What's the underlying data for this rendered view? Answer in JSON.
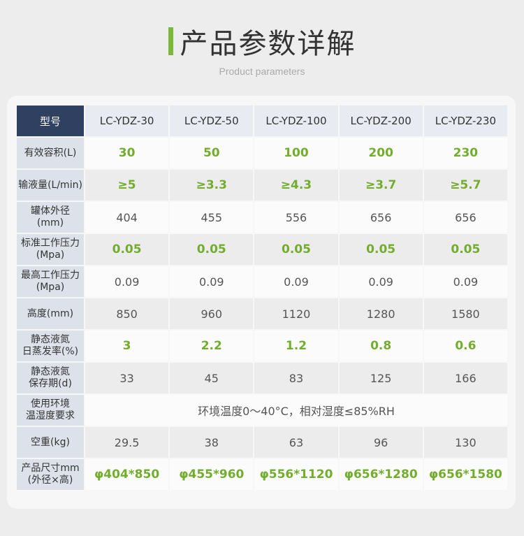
{
  "title": "产品参数详解",
  "subtitle": "Product parameters",
  "accent": "#7ab83a",
  "header_color": "#2f4060",
  "header": {
    "label": "型号",
    "models": [
      "LC-YDZ-30",
      "LC-YDZ-50",
      "LC-YDZ-100",
      "LC-YDZ-200",
      "LC-YDZ-230"
    ]
  },
  "rows": [
    {
      "label": "有效容积(L)",
      "values": [
        "30",
        "50",
        "100",
        "200",
        "230"
      ],
      "highlight": true
    },
    {
      "label": "输液量(L/min)",
      "values": [
        "≥5",
        "≥3.3",
        "≥4.3",
        "≥3.7",
        "≥5.7"
      ],
      "highlight": true
    },
    {
      "label": "罐体外径\n(mm)",
      "values": [
        "404",
        "455",
        "556",
        "656",
        "656"
      ],
      "highlight": false
    },
    {
      "label": "标准工作压力\n(Mpa)",
      "values": [
        "0.05",
        "0.05",
        "0.05",
        "0.05",
        "0.05"
      ],
      "highlight": true
    },
    {
      "label": "最高工作压力\n(Mpa)",
      "values": [
        "0.09",
        "0.09",
        "0.09",
        "0.09",
        "0.09"
      ],
      "highlight": false
    },
    {
      "label": "高度(mm)",
      "values": [
        "850",
        "960",
        "1120",
        "1280",
        "1580"
      ],
      "highlight": false
    },
    {
      "label": "静态液氮\n日蒸发率(%)",
      "values": [
        "3",
        "2.2",
        "1.2",
        "0.8",
        "0.6"
      ],
      "highlight": true
    },
    {
      "label": "静态液氮\n保存期(d)",
      "values": [
        "33",
        "45",
        "83",
        "125",
        "166"
      ],
      "highlight": false
    },
    {
      "label": "使用环境\n温湿度要求",
      "merged": "环境温度0～40°C，相对湿度≤85%RH",
      "highlight": false
    },
    {
      "label": "空重(kg)",
      "values": [
        "29.5",
        "38",
        "63",
        "96",
        "130"
      ],
      "highlight": false
    },
    {
      "label": "产品尺寸mm\n(外径×高)",
      "values": [
        "φ404*850",
        "φ455*960",
        "φ556*1120",
        "φ656*1280",
        "φ656*1580"
      ],
      "highlight": true
    }
  ]
}
